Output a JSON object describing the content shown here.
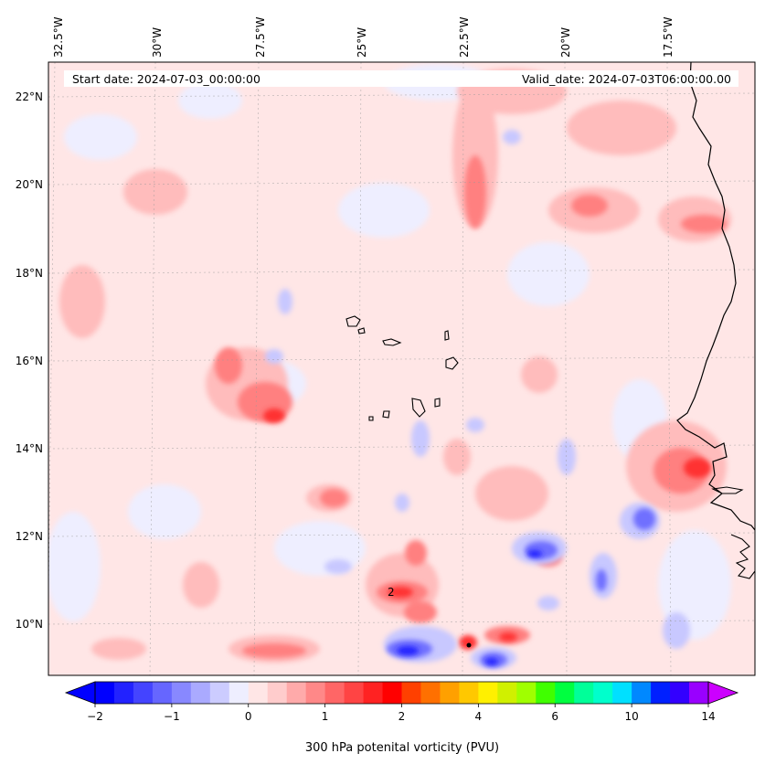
{
  "map": {
    "start_date": "Start date: 2024-07-03_00:00:00",
    "valid_date": "Valid_date: 2024-07-03T06:00:00.00",
    "lon_ticks": [
      "32.5°W",
      "30°W",
      "27.5°W",
      "25°W",
      "22.5°W",
      "20°W",
      "17.5°W"
    ],
    "lat_ticks": [
      "22°N",
      "20°N",
      "18°N",
      "16°N",
      "14°N",
      "12°N",
      "10°N"
    ],
    "contour_label": "2",
    "colors": {
      "background_low_positive": "#ffe6e6",
      "light_red": "#ffc0c0",
      "medium_red": "#ff8080",
      "strong_red": "#ff3030",
      "light_blue": "#c8c8ff",
      "medium_blue": "#7070ff",
      "strong_blue": "#2020ff"
    }
  },
  "colorbar": {
    "label": "300 hPa potenital vorticity (PVU)",
    "tick_labels": [
      "−2",
      "−1",
      "0",
      "1",
      "2",
      "4",
      "6",
      "10",
      "14"
    ],
    "colors": [
      "#0000ff",
      "#2222ff",
      "#4444ff",
      "#6666ff",
      "#8888ff",
      "#aaaaff",
      "#ccccff",
      "#eeeeff",
      "#ffe6e6",
      "#ffcccc",
      "#ffaaaa",
      "#ff8888",
      "#ff6666",
      "#ff4444",
      "#ff2222",
      "#ff0000",
      "#ff4000",
      "#ff7000",
      "#ffa000",
      "#ffc800",
      "#fff000",
      "#d0f000",
      "#a0ff00",
      "#40ff00",
      "#00ff40",
      "#00ff99",
      "#00ffcc",
      "#00e0ff",
      "#0088ff",
      "#0020ff",
      "#3300ff",
      "#9900ff"
    ],
    "under_color": "#0000ff",
    "over_color": "#cc00ff"
  }
}
